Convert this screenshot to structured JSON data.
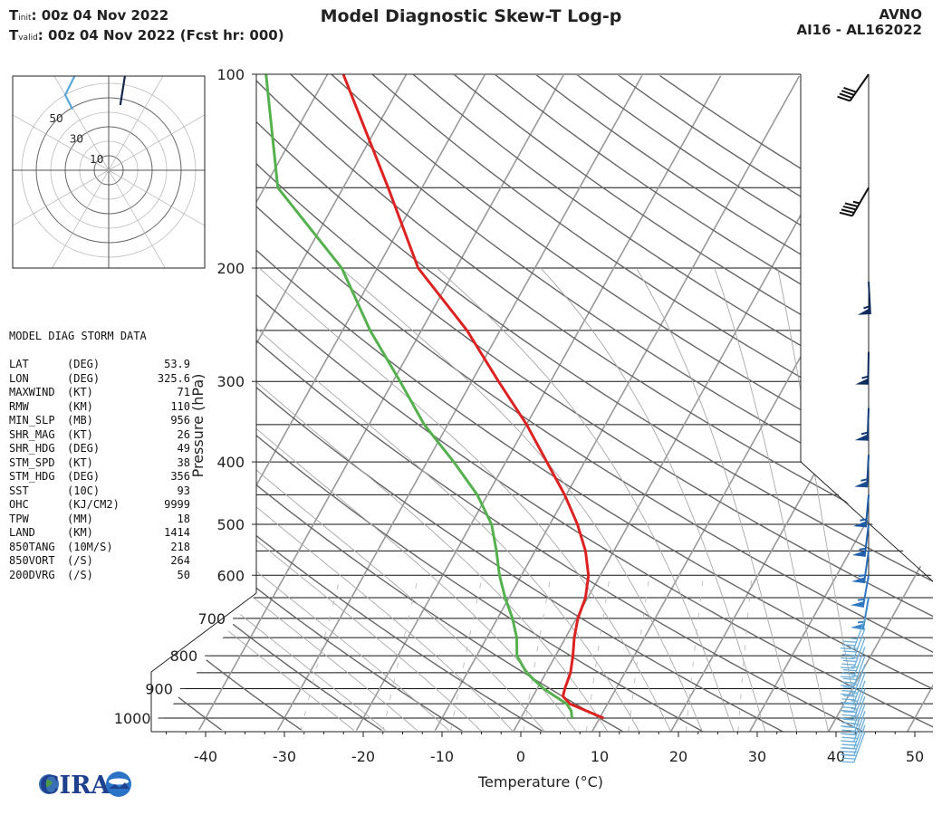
{
  "header": {
    "t_init_label": "T",
    "t_init_sub": "init",
    "t_init_value": ":  00z 04 Nov 2022",
    "t_valid_label": "T",
    "t_valid_sub": "valid",
    "t_valid_value": ": 00z 04 Nov 2022 (Fcst hr: 000)",
    "title": "Model Diagnostic Skew-T Log-p",
    "model": "AVNO",
    "storm": "AI16 - AL162022"
  },
  "diag_table": {
    "title": "MODEL DIAG STORM DATA",
    "rows": [
      {
        "key": "LAT",
        "unit": "(DEG)",
        "value": "53.9"
      },
      {
        "key": "LON",
        "unit": "(DEG)",
        "value": "325.6"
      },
      {
        "key": "MAXWIND",
        "unit": "(KT)",
        "value": "71"
      },
      {
        "key": "RMW",
        "unit": "(KM)",
        "value": "110"
      },
      {
        "key": "MIN_SLP",
        "unit": "(MB)",
        "value": "956"
      },
      {
        "key": "SHR_MAG",
        "unit": "(KT)",
        "value": "26"
      },
      {
        "key": "SHR_HDG",
        "unit": "(DEG)",
        "value": "49"
      },
      {
        "key": "STM_SPD",
        "unit": "(KT)",
        "value": "38"
      },
      {
        "key": "STM_HDG",
        "unit": "(DEG)",
        "value": "356"
      },
      {
        "key": "SST",
        "unit": "(10C)",
        "value": "93"
      },
      {
        "key": "OHC",
        "unit": "(KJ/CM2)",
        "value": "9999"
      },
      {
        "key": "TPW",
        "unit": "(MM)",
        "value": "18"
      },
      {
        "key": "LAND",
        "unit": "(KM)",
        "value": "1414"
      },
      {
        "key": "850TANG",
        "unit": "(10M/S)",
        "value": "218"
      },
      {
        "key": "850VORT",
        "unit": "(/S)",
        "value": "264"
      },
      {
        "key": "200DVRG",
        "unit": "(/S)",
        "value": "50"
      }
    ]
  },
  "logo": {
    "text": "CIRA"
  },
  "chart_data": [
    {
      "type": "line",
      "subtype": "skew-t log-p",
      "xlabel": "Temperature (°C)",
      "ylabel": "Pressure (hPa)",
      "xticks": [
        -40,
        -30,
        -20,
        -10,
        0,
        10,
        20,
        30,
        40,
        50
      ],
      "yticks": [
        1000,
        900,
        800,
        700,
        600,
        500,
        400,
        300,
        200,
        100
      ],
      "ylim": [
        1050,
        100
      ],
      "series": [
        {
          "name": "Temperature",
          "color": "#dd2222",
          "points": [
            [
              1000,
              10.5
            ],
            [
              950,
              5.2
            ],
            [
              925,
              3.8
            ],
            [
              900,
              3.5
            ],
            [
              850,
              3.1
            ],
            [
              800,
              2.2
            ],
            [
              750,
              1.1
            ],
            [
              700,
              0.2
            ],
            [
              650,
              -0.3
            ],
            [
              600,
              -1.5
            ],
            [
              550,
              -3.6
            ],
            [
              500,
              -6.5
            ],
            [
              450,
              -10.2
            ],
            [
              400,
              -14.8
            ],
            [
              350,
              -20
            ],
            [
              300,
              -26.6
            ],
            [
              250,
              -34.2
            ],
            [
              200,
              -44.8
            ],
            [
              150,
              -54.3
            ],
            [
              100,
              -68
            ]
          ]
        },
        {
          "name": "Dewpoint",
          "color": "#55b14e",
          "points": [
            [
              1000,
              6.5
            ],
            [
              975,
              5.9
            ],
            [
              950,
              4.8
            ],
            [
              925,
              2.8
            ],
            [
              900,
              0.8
            ],
            [
              850,
              -2.5
            ],
            [
              800,
              -4.9
            ],
            [
              750,
              -6.2
            ],
            [
              700,
              -8.1
            ],
            [
              650,
              -10.5
            ],
            [
              600,
              -12.8
            ],
            [
              550,
              -14.9
            ],
            [
              500,
              -17.4
            ],
            [
              450,
              -21.3
            ],
            [
              400,
              -26.6
            ],
            [
              350,
              -33
            ],
            [
              300,
              -39.1
            ],
            [
              250,
              -46.5
            ],
            [
              200,
              -54.5
            ],
            [
              150,
              -68.3
            ],
            [
              100,
              -77.8
            ]
          ]
        }
      ],
      "wind_barbs": {
        "upper": [
          {
            "p": 100,
            "spd_kt": 40,
            "dir_deg": 215
          },
          {
            "p": 150,
            "spd_kt": 45,
            "dir_deg": 210
          },
          {
            "p": 210,
            "spd_kt": 55,
            "dir_deg": 177
          },
          {
            "p": 270,
            "spd_kt": 55,
            "dir_deg": 181
          },
          {
            "p": 330,
            "spd_kt": 55,
            "dir_deg": 182
          },
          {
            "p": 390,
            "spd_kt": 55,
            "dir_deg": 183
          },
          {
            "p": 450,
            "spd_kt": 55,
            "dir_deg": 185
          },
          {
            "p": 500,
            "spd_kt": 55,
            "dir_deg": 187
          },
          {
            "p": 550,
            "spd_kt": 55,
            "dir_deg": 188
          },
          {
            "p": 600,
            "spd_kt": 55,
            "dir_deg": 190
          },
          {
            "p": 650,
            "spd_kt": 55,
            "dir_deg": 190
          }
        ],
        "lower_pressures": [
          700,
          725,
          750,
          775,
          800,
          825,
          850,
          875,
          900,
          925,
          950,
          975,
          1000,
          1025,
          1050
        ],
        "lower_spd_kt": 35,
        "lower_dir_deg": 200
      }
    },
    {
      "type": "line",
      "subtype": "hodograph",
      "ring_labels": [
        "10",
        "30",
        "50"
      ],
      "rings_kt": [
        10,
        20,
        30,
        40,
        50,
        60
      ],
      "series": [
        {
          "name": "lower",
          "color": "#5aa8d8",
          "points": [
            [
              -25,
              42
            ],
            [
              -30,
              52
            ],
            [
              -22,
              68
            ],
            [
              -14,
              78
            ],
            [
              -10,
              90
            ]
          ]
        },
        {
          "name": "upper",
          "color": "#15284b",
          "points": [
            [
              -10,
              90
            ],
            [
              0,
              83
            ],
            [
              12,
              70
            ],
            [
              8,
              45
            ]
          ]
        }
      ]
    }
  ]
}
